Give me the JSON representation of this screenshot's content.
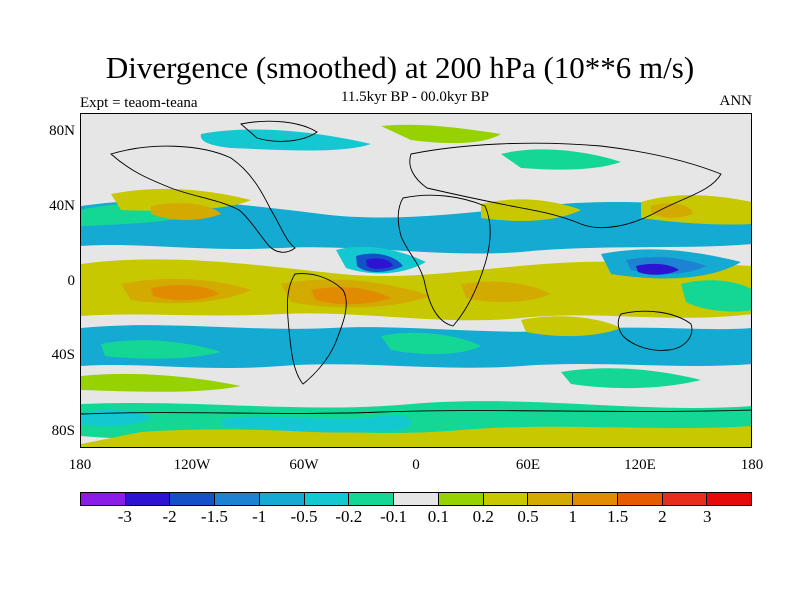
{
  "title": "Divergence (smoothed) at 200 hPa (10**6 m/s)",
  "subtitle": "11.5kyr BP - 00.0kyr BP",
  "experiment_label": "Expt = teaom-teana",
  "period_label": "ANN",
  "map": {
    "projection": "cylindrical equidistant",
    "lat_ticks": [
      "80N",
      "40N",
      "0",
      "40S",
      "80S"
    ],
    "lon_ticks": [
      "180",
      "120W",
      "60W",
      "0",
      "60E",
      "120E",
      "180"
    ],
    "background_color": "#e6e6e6"
  },
  "colorbar": {
    "colors": [
      "#8b1ee6",
      "#2d14d2",
      "#1450c8",
      "#1e82d2",
      "#14aad2",
      "#14c8d2",
      "#14d796",
      "#e6e6e6",
      "#96d200",
      "#c8c800",
      "#d2aa00",
      "#e18c00",
      "#e65a00",
      "#e62d1e",
      "#e60a0a"
    ],
    "labels": [
      "-3",
      "-2",
      "-1.5",
      "-1",
      "-0.5",
      "-0.2",
      "-0.1",
      "0.1",
      "0.2",
      "0.5",
      "1",
      "1.5",
      "2",
      "3"
    ]
  }
}
